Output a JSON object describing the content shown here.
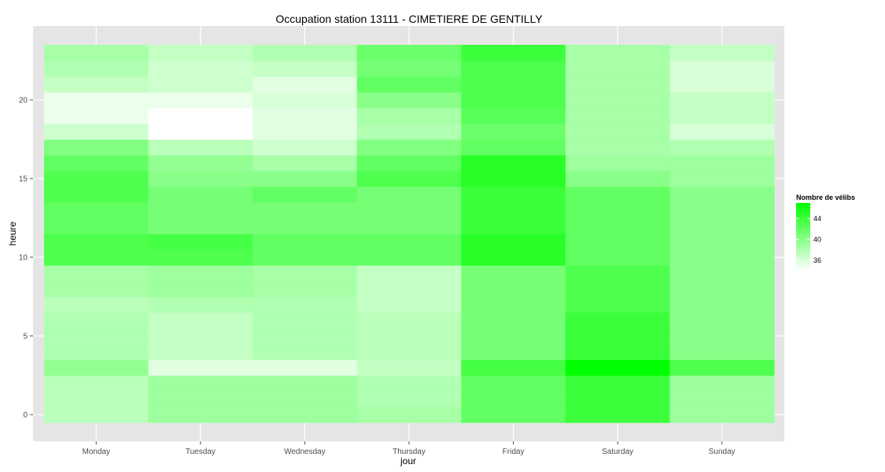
{
  "chart_data": {
    "type": "heatmap",
    "title": "Occupation station 13111 - CIMETIERE DE GENTILLY",
    "xlabel": "jour",
    "ylabel": "heure",
    "x_categories": [
      "Monday",
      "Tuesday",
      "Wednesday",
      "Thursday",
      "Friday",
      "Saturday",
      "Sunday"
    ],
    "y_values": [
      0,
      1,
      2,
      3,
      4,
      5,
      6,
      7,
      8,
      9,
      10,
      11,
      12,
      13,
      14,
      15,
      16,
      17,
      18,
      19,
      20,
      21,
      22,
      23
    ],
    "y_ticks": [
      0,
      5,
      10,
      15,
      20
    ],
    "value_range": [
      34,
      47
    ],
    "legend": {
      "title": "Nombre de vélibs",
      "ticks": [
        36,
        40,
        44
      ],
      "position": "right",
      "low_color": "#ffffff",
      "high_color": "#00ff00"
    },
    "grid": true,
    "values": {
      "Monday": [
        37.5,
        37.5,
        37.5,
        39.5,
        38,
        38,
        38,
        37.5,
        38.5,
        38.5,
        43,
        43,
        42,
        42,
        43,
        43,
        42,
        40.5,
        36.5,
        35,
        35,
        37,
        38,
        38.5
      ],
      "Tuesday": [
        39,
        39,
        39,
        35.5,
        37,
        37,
        37,
        38,
        39,
        39,
        43,
        43.5,
        41,
        41,
        41,
        40,
        39.5,
        37.5,
        34,
        34,
        35,
        36.5,
        36.5,
        37
      ],
      "Wednesday": [
        39,
        39,
        39,
        35.5,
        38,
        38,
        38,
        38,
        38.5,
        38.5,
        42,
        42,
        41,
        41,
        42,
        40,
        38.5,
        36.5,
        35.5,
        35.5,
        36,
        35.5,
        37,
        38
      ],
      "Thursday": [
        38.5,
        38,
        38,
        37,
        37.5,
        37.5,
        37.5,
        37,
        37,
        37,
        42,
        42,
        41,
        41,
        41,
        43,
        42,
        40.5,
        38,
        38.5,
        40,
        42,
        41,
        41.5
      ],
      "Friday": [
        42,
        42,
        42,
        43.5,
        41,
        41,
        41,
        41,
        41,
        41,
        45,
        45,
        44,
        44,
        44,
        45,
        45,
        42,
        41.5,
        42.5,
        43,
        43,
        43,
        44
      ],
      "Saturday": [
        44,
        44,
        44,
        47,
        44,
        44,
        44,
        43,
        43,
        43,
        42,
        42,
        42,
        42,
        42,
        40,
        39,
        38.5,
        38.5,
        38.5,
        38.5,
        38.5,
        38.5,
        38.5
      ],
      "Sunday": [
        39,
        39,
        39,
        43,
        40,
        40,
        40,
        40,
        40,
        40,
        40,
        40,
        40,
        40,
        40,
        39,
        39,
        38,
        36,
        37,
        37,
        36,
        36,
        37
      ]
    }
  }
}
